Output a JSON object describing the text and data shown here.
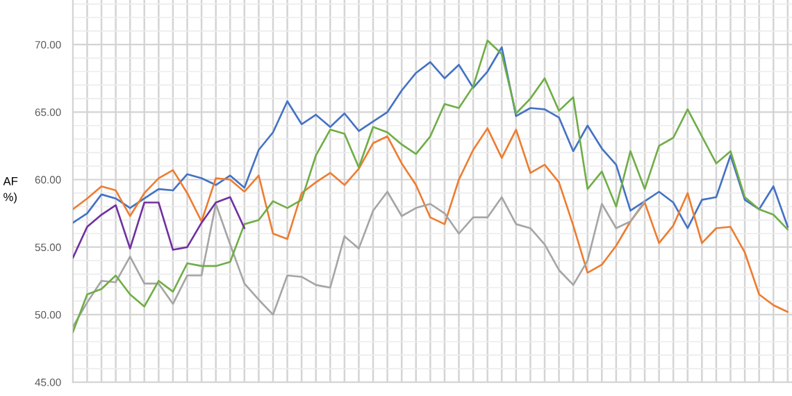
{
  "chart_data": {
    "type": "line",
    "ylabel": "AF\n%)",
    "categories": [
      null,
      null,
      null,
      null,
      null,
      null,
      null,
      null,
      null,
      null,
      null,
      null,
      null,
      null,
      null,
      null,
      null,
      null,
      null,
      null,
      null,
      null,
      null,
      null,
      null,
      null,
      null,
      null,
      null,
      null,
      null,
      null,
      null,
      null,
      null,
      null,
      null,
      null,
      null,
      null,
      null,
      null,
      null,
      null,
      null,
      null,
      null,
      null,
      null,
      null,
      null
    ],
    "ylim": [
      45,
      73.3
    ],
    "yticks": [
      {
        "value": 45,
        "label": "45.00"
      },
      {
        "value": 46,
        "label": null
      },
      {
        "value": 47,
        "label": null
      },
      {
        "value": 48,
        "label": null
      },
      {
        "value": 49,
        "label": null
      },
      {
        "value": 50,
        "label": "50.00"
      },
      {
        "value": 51,
        "label": null
      },
      {
        "value": 52,
        "label": null
      },
      {
        "value": 53,
        "label": null
      },
      {
        "value": 54,
        "label": null
      },
      {
        "value": 55,
        "label": "55.00"
      },
      {
        "value": 56,
        "label": null
      },
      {
        "value": 57,
        "label": null
      },
      {
        "value": 58,
        "label": null
      },
      {
        "value": 59,
        "label": null
      },
      {
        "value": 60,
        "label": "60.00"
      },
      {
        "value": 61,
        "label": null
      },
      {
        "value": 62,
        "label": null
      },
      {
        "value": 63,
        "label": null
      },
      {
        "value": 64,
        "label": null
      },
      {
        "value": 65,
        "label": "65.00"
      },
      {
        "value": 66,
        "label": null
      },
      {
        "value": 67,
        "label": null
      },
      {
        "value": 68,
        "label": null
      },
      {
        "value": 69,
        "label": null
      },
      {
        "value": 70,
        "label": "70.00"
      },
      {
        "value": 71,
        "label": null
      },
      {
        "value": 72,
        "label": null
      },
      {
        "value": 73,
        "label": null
      }
    ],
    "grid": true,
    "tick_labels": "y",
    "series": [
      {
        "color": "#4472c4",
        "values": [
          56.8,
          57.5,
          58.9,
          58.6,
          57.9,
          58.6,
          59.3,
          59.2,
          60.4,
          60.1,
          59.6,
          60.3,
          59.4,
          62.2,
          63.5,
          65.8,
          64.1,
          64.8,
          63.9,
          64.9,
          63.6,
          64.3,
          65.0,
          66.6,
          67.9,
          68.7,
          67.5,
          68.5,
          66.8,
          68.0,
          69.8,
          64.7,
          65.3,
          65.2,
          64.6,
          62.1,
          64.0,
          62.3,
          61.1,
          57.7,
          58.4,
          59.1,
          58.3,
          56.4,
          58.5,
          58.7,
          61.8,
          58.5,
          57.8,
          59.5,
          56.5
        ]
      },
      {
        "color": "#ed7d31",
        "values": [
          57.8,
          58.6,
          59.5,
          59.2,
          57.3,
          59.0,
          60.1,
          60.7,
          59.0,
          56.9,
          60.1,
          60.0,
          59.1,
          60.3,
          56.0,
          55.6,
          59.0,
          59.8,
          60.5,
          59.6,
          60.8,
          62.7,
          63.2,
          61.2,
          59.6,
          57.2,
          56.7,
          60.0,
          62.2,
          63.8,
          61.6,
          63.7,
          60.5,
          61.1,
          59.8,
          56.6,
          53.1,
          53.7,
          55.1,
          56.9,
          58.3,
          55.3,
          56.6,
          59.0,
          55.3,
          56.4,
          56.5,
          54.6,
          51.5,
          50.7,
          50.2
        ]
      },
      {
        "color": "#a5a5a5",
        "values": [
          49.1,
          50.9,
          52.5,
          52.4,
          54.3,
          52.3,
          52.3,
          50.8,
          52.9,
          52.9,
          58.2,
          55.2,
          52.3,
          51.1,
          50.0,
          52.9,
          52.8,
          52.2,
          52.0,
          55.8,
          54.9,
          57.7,
          59.1,
          57.3,
          57.9,
          58.2,
          57.5,
          56.0,
          57.2,
          57.2,
          58.7,
          56.7,
          56.4,
          55.2,
          53.3,
          52.2,
          54.0,
          58.2,
          56.4,
          56.9,
          58.4,
          null,
          null,
          null,
          null,
          null,
          null,
          null,
          null,
          null,
          null
        ]
      },
      {
        "color": "#70ad47",
        "values": [
          48.7,
          51.5,
          51.9,
          52.9,
          51.5,
          50.6,
          52.5,
          51.7,
          53.8,
          53.6,
          53.6,
          53.9,
          56.7,
          57.0,
          58.4,
          57.9,
          58.5,
          61.8,
          63.7,
          63.4,
          60.9,
          63.9,
          63.5,
          62.6,
          61.9,
          63.2,
          65.6,
          65.3,
          66.9,
          70.3,
          69.3,
          64.9,
          66.0,
          67.5,
          65.1,
          66.1,
          59.3,
          60.6,
          58.0,
          62.1,
          59.3,
          62.5,
          63.1,
          65.2,
          63.2,
          61.2,
          62.1,
          58.7,
          57.8,
          57.4,
          56.3
        ]
      },
      {
        "color": "#7030a0",
        "values": [
          54.2,
          56.5,
          57.4,
          58.1,
          54.9,
          58.3,
          58.3,
          54.8,
          55.0,
          56.8,
          58.3,
          58.7,
          56.4,
          null,
          null,
          null,
          null,
          null,
          null,
          null,
          null,
          null,
          null,
          null,
          null,
          null,
          null,
          null,
          null,
          null,
          null,
          null,
          null,
          null,
          null,
          null,
          null,
          null,
          null,
          null,
          null,
          null,
          null,
          null,
          null,
          null,
          null,
          null,
          null,
          null,
          null
        ]
      }
    ]
  }
}
